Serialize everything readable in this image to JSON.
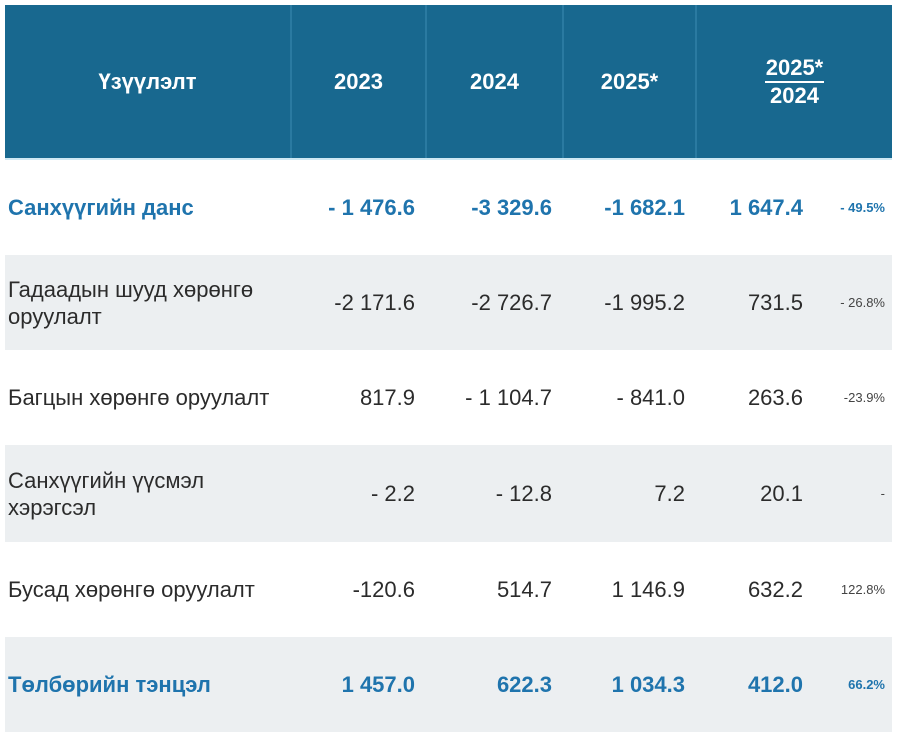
{
  "table": {
    "header": {
      "indicator": "Үзүүлэлт",
      "col_2023": "2023",
      "col_2024": "2024",
      "col_2025": "2025*",
      "ratio_numerator": "2025*",
      "ratio_denominator": "2024"
    },
    "rows": [
      {
        "label": "Санхүүгийн данс",
        "v2023": "- 1 476.6",
        "v2024": "-3 329.6",
        "v2025": "-1 682.1",
        "ratio": "1 647.4",
        "pct": "- 49.5%",
        "emphasis": true
      },
      {
        "label": "Гадаадын шууд хөрөнгө оруулалт",
        "v2023": "-2 171.6",
        "v2024": "-2 726.7",
        "v2025": "-1 995.2",
        "ratio": "731.5",
        "pct": "- 26.8%",
        "emphasis": false
      },
      {
        "label": "Багцын хөрөнгө оруулалт",
        "v2023": "817.9",
        "v2024": "- 1 104.7",
        "v2025": "- 841.0",
        "ratio": "263.6",
        "pct": "-23.9%",
        "emphasis": false
      },
      {
        "label": "Санхүүгийн үүсмэл хэрэгсэл",
        "v2023": "- 2.2",
        "v2024": "- 12.8",
        "v2025": "7.2",
        "ratio": "20.1",
        "pct": "-",
        "emphasis": false
      },
      {
        "label": "Бусад хөрөнгө оруулалт",
        "v2023": "-120.6",
        "v2024": "514.7",
        "v2025": "1 146.9",
        "ratio": "632.2",
        "pct": "122.8%",
        "emphasis": false
      },
      {
        "label": "Төлбөрийн тэнцэл",
        "v2023": "1 457.0",
        "v2024": "622.3",
        "v2025": "1 034.3",
        "ratio": "412.0",
        "pct": "66.2%",
        "emphasis": true
      }
    ]
  },
  "colors": {
    "header_bg": "#18688f",
    "accent_text": "#1f74ad",
    "shaded_row": "#eceff1"
  }
}
